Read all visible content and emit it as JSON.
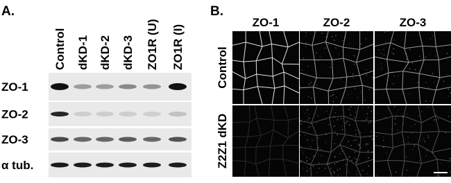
{
  "panel_a": {
    "label": "A.",
    "lanes": [
      "Control",
      "dKD-1",
      "dKD-2",
      "dKD-3",
      "ZO1R (U)",
      "ZO1R (I)"
    ],
    "rows": [
      "ZO-1",
      "ZO-2",
      "ZO-3",
      "α tub."
    ]
  },
  "panel_b": {
    "label": "B.",
    "columns": [
      "ZO-1",
      "ZO-2",
      "ZO-3"
    ],
    "rows": [
      "Control",
      "Z2Z1 dKD"
    ]
  }
}
